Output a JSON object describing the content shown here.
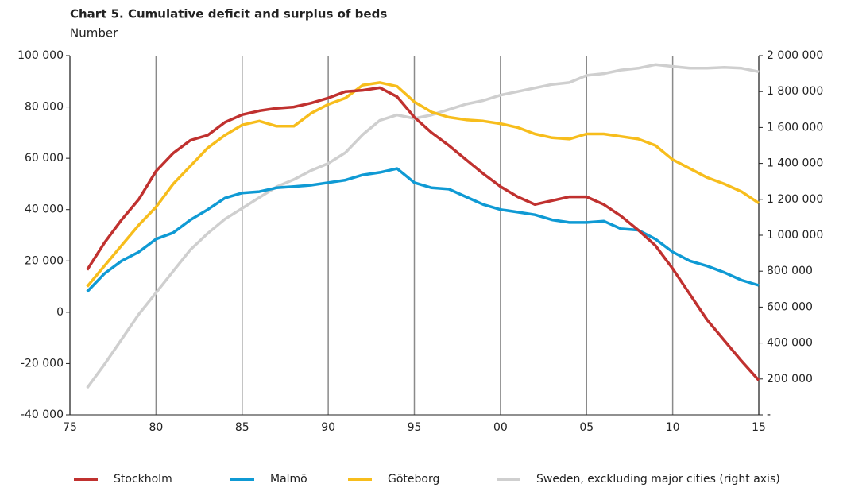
{
  "chart_data": {
    "type": "line",
    "title": "Chart 5. Cumulative deficit and surplus of beds",
    "subtitle": "Number",
    "x": [
      1976,
      1977,
      1978,
      1979,
      1980,
      1981,
      1982,
      1983,
      1984,
      1985,
      1986,
      1987,
      1988,
      1989,
      1990,
      1991,
      1992,
      1993,
      1994,
      1995,
      1996,
      1997,
      1998,
      1999,
      2000,
      2001,
      2002,
      2003,
      2004,
      2005,
      2006,
      2007,
      2008,
      2009,
      2010,
      2011,
      2012,
      2013,
      2014,
      2015
    ],
    "xlim": [
      1975,
      2015
    ],
    "xticks": [
      {
        "value": 1975,
        "label": "75"
      },
      {
        "value": 1980,
        "label": "80"
      },
      {
        "value": 1985,
        "label": "85"
      },
      {
        "value": 1990,
        "label": "90"
      },
      {
        "value": 1995,
        "label": "95"
      },
      {
        "value": 2000,
        "label": "00"
      },
      {
        "value": 2005,
        "label": "05"
      },
      {
        "value": 2010,
        "label": "10"
      },
      {
        "value": 2015,
        "label": "15"
      }
    ],
    "ylim": [
      -40000,
      100000
    ],
    "yticks": [
      {
        "value": -40000,
        "label": "-40 000"
      },
      {
        "value": -20000,
        "label": "-20 000"
      },
      0,
      {
        "value": 20000,
        "label": "20 000"
      },
      {
        "value": 40000,
        "label": "40 000"
      },
      {
        "value": 60000,
        "label": "60 000"
      },
      {
        "value": 80000,
        "label": "80 000"
      },
      {
        "value": 100000,
        "label": "100 000"
      }
    ],
    "y2lim": [
      0,
      2000000
    ],
    "y2ticks": [
      {
        "value": 0,
        "label": "-"
      },
      {
        "value": 200000,
        "label": "200 000"
      },
      {
        "value": 400000,
        "label": "400 000"
      },
      {
        "value": 600000,
        "label": "600 000"
      },
      {
        "value": 800000,
        "label": "800 000"
      },
      {
        "value": 1000000,
        "label": "1 000 000"
      },
      {
        "value": 1200000,
        "label": "1 200 000"
      },
      {
        "value": 1400000,
        "label": "1 400 000"
      },
      {
        "value": 1600000,
        "label": "1 600 000"
      },
      {
        "value": 1800000,
        "label": "1 800 000"
      },
      {
        "value": 2000000,
        "label": "2 000 000"
      }
    ],
    "grid": "x",
    "legend": "bottom",
    "series": [
      {
        "name": "Stockholm",
        "color": "#c0312f",
        "values": [
          16500,
          27000,
          36000,
          44000,
          55000,
          62000,
          67000,
          69000,
          74000,
          77000,
          78500,
          79500,
          80000,
          81500,
          83500,
          86000,
          86500,
          87500,
          84000,
          76000,
          70000,
          65000,
          59500,
          54000,
          49000,
          45000,
          42000,
          43500,
          45000,
          45000,
          42000,
          37500,
          32000,
          26000,
          17000,
          7000,
          -3000,
          -11000,
          -19000,
          -26500
        ]
      },
      {
        "name": "Malmö",
        "color": "#0f9ad4",
        "values": [
          8000,
          15000,
          20000,
          23500,
          28500,
          31000,
          36000,
          40000,
          44500,
          46500,
          47000,
          48500,
          49000,
          49500,
          50500,
          51500,
          53500,
          54500,
          56000,
          50500,
          48500,
          48000,
          45000,
          42000,
          40000,
          39000,
          38000,
          36000,
          35000,
          35000,
          35500,
          32500,
          32000,
          28500,
          23500,
          20000,
          18000,
          15500,
          12500,
          10500
        ]
      },
      {
        "name": "Göteborg",
        "color": "#f7bd1c",
        "values": [
          10000,
          18000,
          26000,
          34000,
          41000,
          50000,
          57000,
          64000,
          69000,
          73000,
          74500,
          72500,
          72500,
          77500,
          81000,
          83500,
          88500,
          89500,
          88000,
          82000,
          78000,
          76000,
          75000,
          74500,
          73500,
          72000,
          69500,
          68000,
          67500,
          69500,
          69500,
          68500,
          67500,
          65000,
          59500,
          56000,
          52500,
          50000,
          47000,
          42500
        ]
      },
      {
        "name": "Sweden, exckluding major cities (right axis)",
        "color": "#cfcfcf",
        "axis": "y2",
        "values": [
          150000,
          280000,
          420000,
          560000,
          680000,
          800000,
          920000,
          1010000,
          1090000,
          1150000,
          1210000,
          1270000,
          1310000,
          1360000,
          1400000,
          1460000,
          1560000,
          1640000,
          1670000,
          1650000,
          1670000,
          1700000,
          1730000,
          1750000,
          1780000,
          1800000,
          1820000,
          1840000,
          1850000,
          1890000,
          1900000,
          1920000,
          1930000,
          1950000,
          1940000,
          1930000,
          1930000,
          1935000,
          1930000,
          1910000
        ]
      }
    ]
  }
}
